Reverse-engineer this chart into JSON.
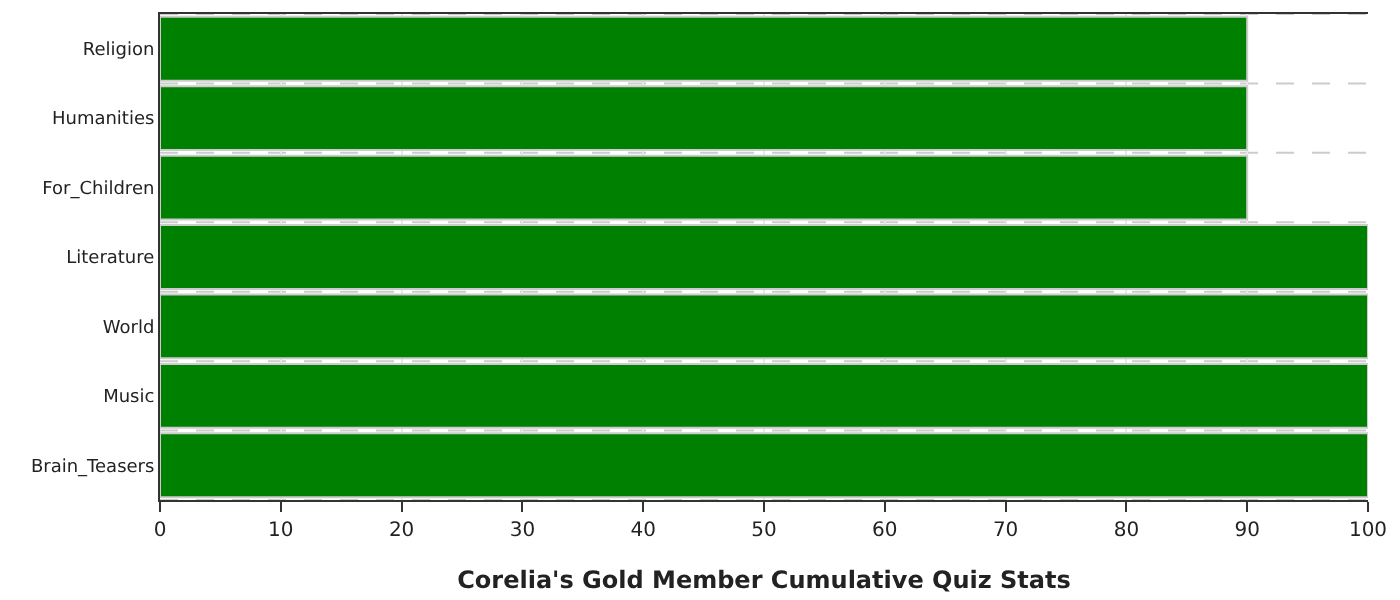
{
  "chart_data": {
    "type": "bar",
    "orientation": "horizontal",
    "xlabel": "Corelia's Gold Member Cumulative Quiz Stats",
    "categories": [
      "Religion",
      "Humanities",
      "For_Children",
      "Literature",
      "World",
      "Music",
      "Brain_Teasers"
    ],
    "values": [
      90,
      90,
      90,
      100,
      100,
      100,
      100
    ],
    "color": "#008000",
    "xlim": [
      0,
      100
    ],
    "xticks": [
      0,
      10,
      20,
      30,
      40,
      50,
      60,
      70,
      80,
      90,
      100
    ],
    "grid": true,
    "legend": false
  }
}
